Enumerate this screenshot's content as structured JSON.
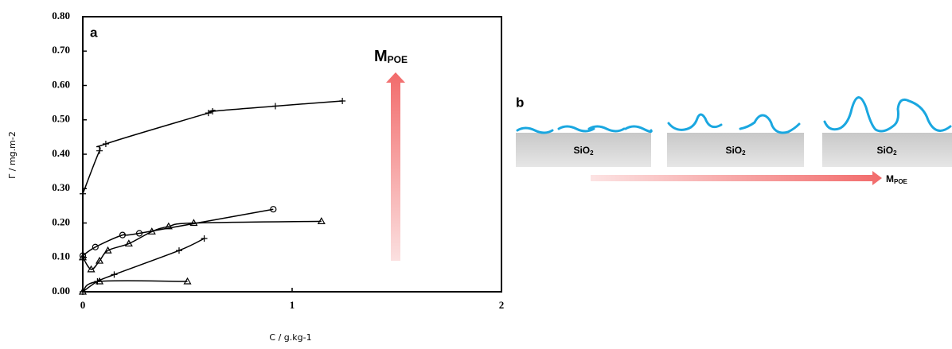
{
  "chart_data": {
    "type": "line",
    "panel_label": "a",
    "x_label": "C  / g.kg-1",
    "y_label": "Γ / mg.m-2",
    "annotation": {
      "main": "M",
      "sub": "POE"
    },
    "xlim": [
      0,
      2
    ],
    "xticks": [
      0,
      1,
      2
    ],
    "ylim": [
      0,
      0.8
    ],
    "yticks": [
      {
        "value": 0,
        "label": "0.00"
      },
      {
        "value": 0.1,
        "label": "0.10"
      },
      {
        "value": 0.2,
        "label": "0.20"
      },
      {
        "value": 0.3,
        "label": "0.30"
      },
      {
        "value": 0.4,
        "label": "0.40"
      },
      {
        "value": 0.5,
        "label": "0.50"
      },
      {
        "value": 0.6,
        "label": "0.60"
      },
      {
        "value": 0.7,
        "label": "0.70"
      },
      {
        "value": 0.8,
        "label": "0.80"
      }
    ],
    "series": [
      {
        "color": "#000000",
        "marker": "plus",
        "x": [
          0,
          0.08,
          0.11,
          0.6,
          0.62,
          0.92,
          1.24
        ],
        "values": [
          0.285,
          0.41,
          0.43,
          0.52,
          0.525,
          0.54,
          0.555
        ]
      },
      {
        "color": "#000000",
        "marker": "circle",
        "x": [
          0,
          0.06,
          0.19,
          0.27,
          0.91
        ],
        "values": [
          0.105,
          0.13,
          0.165,
          0.17,
          0.24
        ]
      },
      {
        "color": "#000000",
        "marker": "triangle",
        "x": [
          0,
          0.04,
          0.08,
          0.12,
          0.22,
          0.33,
          0.41,
          0.53,
          1.14
        ],
        "values": [
          0.1,
          0.065,
          0.09,
          0.12,
          0.14,
          0.175,
          0.19,
          0.2,
          0.205
        ]
      },
      {
        "color": "#000000",
        "marker": "plus",
        "x": [
          0,
          0.07,
          0.15,
          0.46,
          0.58
        ],
        "values": [
          0,
          0.03,
          0.05,
          0.12,
          0.155
        ]
      },
      {
        "color": "#000000",
        "marker": "triangle",
        "x": [
          0,
          0.08,
          0.5
        ],
        "values": [
          0,
          0.03,
          0.03
        ]
      }
    ]
  },
  "diagram": {
    "panel_label": "b",
    "substrates": [
      {
        "main": "SiO",
        "sub": "2"
      },
      {
        "main": "SiO",
        "sub": "2"
      },
      {
        "main": "SiO",
        "sub": "2"
      }
    ],
    "arrow_label": {
      "main": "M",
      "sub": "POE"
    }
  }
}
